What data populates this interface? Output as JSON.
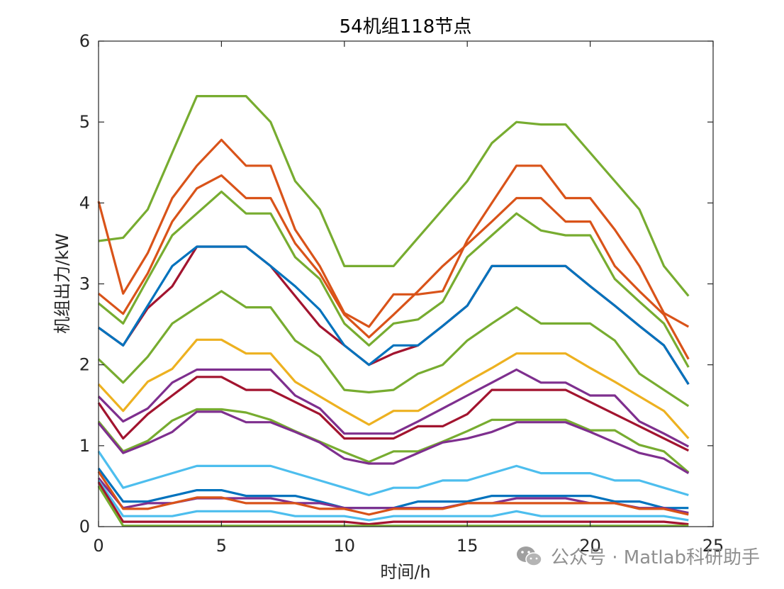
{
  "chart_data": {
    "type": "line",
    "title": "54机组118节点",
    "xlabel": "时间/h",
    "ylabel": "机组出力/kW",
    "xlim": [
      0,
      25
    ],
    "ylim": [
      0,
      6
    ],
    "xticks": [
      0,
      5,
      10,
      15,
      20,
      25
    ],
    "yticks": [
      0,
      1,
      2,
      3,
      4,
      5,
      6
    ],
    "grid": false,
    "x": [
      0,
      1,
      2,
      3,
      4,
      5,
      6,
      7,
      8,
      9,
      10,
      11,
      12,
      13,
      14,
      15,
      16,
      17,
      18,
      19,
      20,
      21,
      22,
      23,
      24
    ],
    "series": [
      {
        "color": "#77AC30",
        "values": [
          3.53,
          3.57,
          3.92,
          4.62,
          5.32,
          5.32,
          5.32,
          5.0,
          4.27,
          3.92,
          3.22,
          3.22,
          3.22,
          3.57,
          3.92,
          4.27,
          4.74,
          5.0,
          4.97,
          4.97,
          4.62,
          4.27,
          3.92,
          3.22,
          2.85
        ]
      },
      {
        "color": "#D95319",
        "values": [
          4.02,
          2.88,
          3.38,
          4.06,
          4.46,
          4.78,
          4.46,
          4.46,
          3.67,
          3.22,
          2.64,
          2.47,
          2.87,
          2.87,
          2.91,
          3.54,
          4.0,
          4.46,
          4.46,
          4.06,
          4.06,
          3.67,
          3.22,
          2.64,
          2.47
        ]
      },
      {
        "color": "#D95319",
        "values": [
          2.88,
          2.63,
          3.13,
          3.77,
          4.18,
          4.34,
          4.06,
          4.06,
          3.5,
          3.13,
          2.62,
          2.34,
          2.62,
          2.91,
          3.22,
          3.49,
          3.77,
          4.06,
          4.06,
          3.77,
          3.77,
          3.22,
          2.91,
          2.62,
          2.07
        ]
      },
      {
        "color": "#77AC30",
        "values": [
          2.76,
          2.51,
          3.06,
          3.6,
          3.87,
          4.14,
          3.87,
          3.87,
          3.33,
          3.06,
          2.51,
          2.24,
          2.51,
          2.56,
          2.78,
          3.33,
          3.6,
          3.87,
          3.66,
          3.6,
          3.6,
          3.06,
          2.78,
          2.51,
          1.97
        ]
      },
      {
        "color": "#A2142F",
        "values": [
          2.46,
          2.24,
          2.7,
          2.97,
          3.46,
          3.46,
          3.46,
          3.22,
          2.85,
          2.48,
          2.24,
          2.0,
          2.14,
          2.24,
          2.48,
          2.73,
          3.22,
          3.22,
          3.22,
          3.22,
          2.97,
          2.73,
          2.48,
          2.24,
          1.76
        ]
      },
      {
        "color": "#0072BD",
        "values": [
          2.46,
          2.24,
          2.73,
          3.22,
          3.46,
          3.46,
          3.46,
          3.22,
          2.97,
          2.68,
          2.24,
          2.0,
          2.24,
          2.24,
          2.48,
          2.73,
          3.22,
          3.22,
          3.22,
          3.22,
          2.97,
          2.73,
          2.48,
          2.24,
          1.76
        ]
      },
      {
        "color": "#77AC30",
        "values": [
          2.07,
          1.78,
          2.1,
          2.51,
          2.71,
          2.91,
          2.71,
          2.71,
          2.3,
          2.1,
          1.69,
          1.66,
          1.69,
          1.89,
          2.0,
          2.3,
          2.51,
          2.71,
          2.51,
          2.51,
          2.51,
          2.3,
          1.89,
          1.69,
          1.49
        ]
      },
      {
        "color": "#EDB120",
        "values": [
          1.76,
          1.43,
          1.79,
          1.95,
          2.31,
          2.31,
          2.14,
          2.14,
          1.79,
          1.61,
          1.43,
          1.26,
          1.43,
          1.43,
          1.61,
          1.79,
          1.96,
          2.14,
          2.14,
          2.14,
          1.96,
          1.79,
          1.61,
          1.43,
          1.09
        ]
      },
      {
        "color": "#7E2F8E",
        "values": [
          1.61,
          1.3,
          1.46,
          1.78,
          1.94,
          1.94,
          1.94,
          1.94,
          1.62,
          1.46,
          1.15,
          1.15,
          1.15,
          1.3,
          1.46,
          1.62,
          1.78,
          1.94,
          1.78,
          1.78,
          1.62,
          1.62,
          1.3,
          1.15,
          0.99
        ]
      },
      {
        "color": "#A2142F",
        "values": [
          1.53,
          1.09,
          1.39,
          1.62,
          1.85,
          1.85,
          1.69,
          1.69,
          1.54,
          1.39,
          1.09,
          1.09,
          1.09,
          1.24,
          1.24,
          1.39,
          1.69,
          1.69,
          1.69,
          1.69,
          1.54,
          1.39,
          1.24,
          1.09,
          0.94
        ]
      },
      {
        "color": "#77AC30",
        "values": [
          1.3,
          0.93,
          1.06,
          1.31,
          1.45,
          1.45,
          1.41,
          1.32,
          1.18,
          1.05,
          0.92,
          0.8,
          0.93,
          0.93,
          1.05,
          1.18,
          1.32,
          1.32,
          1.32,
          1.32,
          1.19,
          1.19,
          1.01,
          0.93,
          0.67
        ]
      },
      {
        "color": "#7E2F8E",
        "values": [
          1.28,
          0.91,
          1.03,
          1.17,
          1.42,
          1.42,
          1.29,
          1.29,
          1.17,
          1.04,
          0.84,
          0.78,
          0.78,
          0.91,
          1.04,
          1.09,
          1.17,
          1.29,
          1.29,
          1.29,
          1.17,
          1.04,
          0.91,
          0.84,
          0.66
        ]
      },
      {
        "color": "#4DBEEE",
        "values": [
          0.93,
          0.48,
          0.57,
          0.66,
          0.75,
          0.75,
          0.75,
          0.75,
          0.66,
          0.57,
          0.48,
          0.39,
          0.48,
          0.48,
          0.57,
          0.57,
          0.66,
          0.75,
          0.66,
          0.66,
          0.66,
          0.57,
          0.57,
          0.48,
          0.39
        ]
      },
      {
        "color": "#0072BD",
        "values": [
          0.72,
          0.31,
          0.31,
          0.38,
          0.45,
          0.45,
          0.38,
          0.38,
          0.38,
          0.31,
          0.23,
          0.23,
          0.23,
          0.31,
          0.31,
          0.31,
          0.38,
          0.38,
          0.38,
          0.38,
          0.38,
          0.31,
          0.31,
          0.23,
          0.23
        ]
      },
      {
        "color": "#7E2F8E",
        "values": [
          0.6,
          0.23,
          0.29,
          0.29,
          0.35,
          0.35,
          0.35,
          0.35,
          0.29,
          0.29,
          0.23,
          0.23,
          0.23,
          0.23,
          0.23,
          0.29,
          0.29,
          0.35,
          0.35,
          0.35,
          0.29,
          0.29,
          0.23,
          0.23,
          0.17
        ]
      },
      {
        "color": "#D95319",
        "values": [
          0.68,
          0.22,
          0.22,
          0.29,
          0.36,
          0.36,
          0.29,
          0.29,
          0.29,
          0.22,
          0.22,
          0.15,
          0.22,
          0.22,
          0.22,
          0.29,
          0.29,
          0.29,
          0.29,
          0.29,
          0.29,
          0.29,
          0.22,
          0.22,
          0.15
        ]
      },
      {
        "color": "#4DBEEE",
        "values": [
          0.57,
          0.13,
          0.13,
          0.13,
          0.19,
          0.19,
          0.19,
          0.19,
          0.13,
          0.13,
          0.13,
          0.08,
          0.13,
          0.13,
          0.13,
          0.13,
          0.13,
          0.19,
          0.13,
          0.13,
          0.13,
          0.13,
          0.13,
          0.13,
          0.08
        ]
      },
      {
        "color": "#A2142F",
        "values": [
          0.55,
          0.06,
          0.06,
          0.06,
          0.06,
          0.06,
          0.06,
          0.06,
          0.06,
          0.06,
          0.06,
          0.03,
          0.06,
          0.06,
          0.06,
          0.06,
          0.06,
          0.06,
          0.06,
          0.06,
          0.06,
          0.06,
          0.06,
          0.06,
          0.03
        ]
      },
      {
        "color": "#77AC30",
        "values": [
          0.5,
          0.01,
          0.01,
          0.01,
          0.01,
          0.01,
          0.01,
          0.01,
          0.01,
          0.01,
          0.01,
          0.01,
          0.01,
          0.01,
          0.01,
          0.01,
          0.01,
          0.01,
          0.01,
          0.01,
          0.01,
          0.01,
          0.01,
          0.01,
          0.01
        ]
      }
    ]
  },
  "watermark": {
    "text": "公众号 · Matlab科研助手",
    "icon": "wechat-icon"
  }
}
